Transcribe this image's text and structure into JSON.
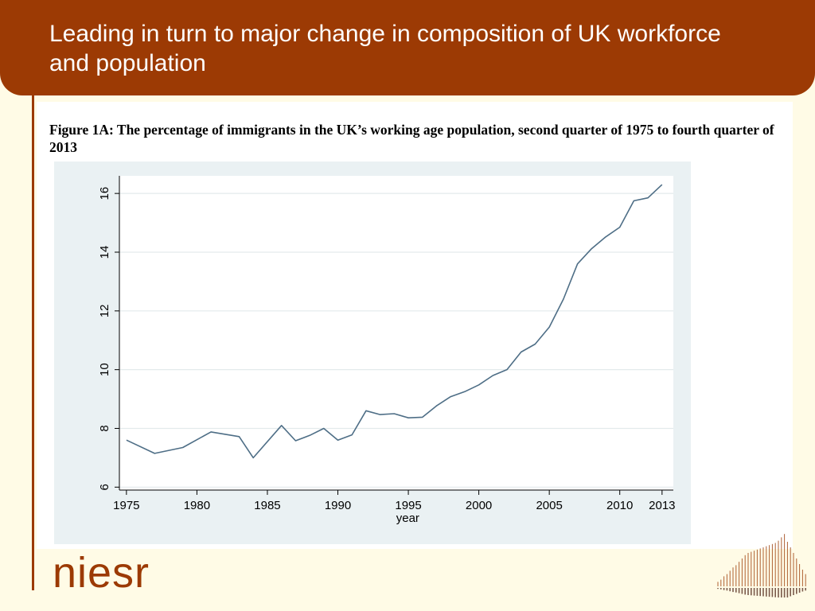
{
  "slide": {
    "title": "Leading in turn to major change in composition of UK workforce and population",
    "caption": "Figure 1A: The percentage of immigrants in the UK’s working age population, second quarter of 1975 to fourth quarter of 2013",
    "logo_text": "niesr"
  },
  "colors": {
    "header_bg": "#9c3a04",
    "line": "#4e6e86",
    "background": "#fffbe6",
    "chart_bg": "#eaf1f3",
    "logo": "#9c3a04"
  },
  "chart_data": {
    "type": "line",
    "title": "Figure 1A: The percentage of immigrants in the UK’s working age population, second quarter of 1975 to fourth quarter of 2013",
    "xlabel": "year",
    "ylabel": "",
    "xlim": [
      1974.5,
      2013.8
    ],
    "ylim": [
      5.9,
      16.6
    ],
    "xticks": [
      1975,
      1980,
      1985,
      1990,
      1995,
      2000,
      2005,
      2010,
      2013
    ],
    "yticks": [
      6,
      8,
      10,
      12,
      14,
      16
    ],
    "grid": true,
    "series": [
      {
        "x": [
          1975,
          1977,
          1979,
          1981,
          1983,
          1984,
          1986,
          1987,
          1988,
          1989,
          1990,
          1991,
          1992,
          1993,
          1994,
          1995,
          1996,
          1997,
          1998,
          1999,
          2000,
          2001,
          2002,
          2003,
          2004,
          2005,
          2006,
          2007,
          2008,
          2009,
          2010,
          2011,
          2012,
          2013
        ],
        "values": [
          7.6,
          7.15,
          7.35,
          7.88,
          7.72,
          7.0,
          8.1,
          7.58,
          7.76,
          8.0,
          7.6,
          7.78,
          8.6,
          8.47,
          8.5,
          8.36,
          8.38,
          8.77,
          9.08,
          9.25,
          9.48,
          9.8,
          10.0,
          10.6,
          10.87,
          11.45,
          12.4,
          13.6,
          14.12,
          14.52,
          14.85,
          15.75,
          15.85,
          16.3
        ]
      }
    ]
  }
}
